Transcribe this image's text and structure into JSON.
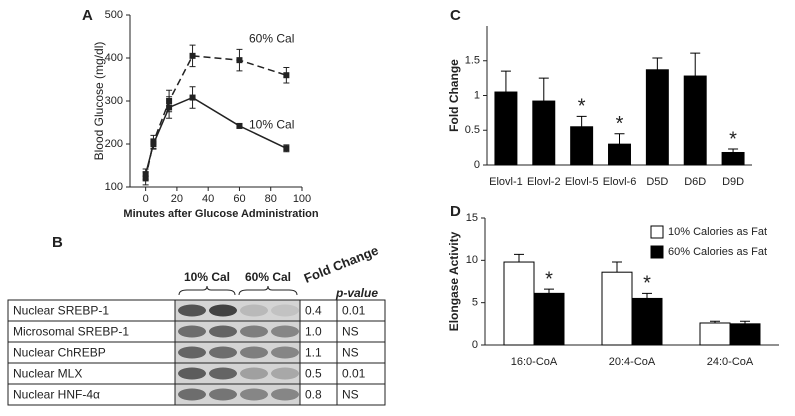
{
  "chart_data": [
    {
      "type": "line",
      "panel": "A",
      "x_label": "Minutes after Glucose Administration",
      "y_label": "Blood Glucose (mg/dl)",
      "x": [
        0,
        5,
        15,
        30,
        60,
        90
      ],
      "series": [
        {
          "name": "60% Cal",
          "color": "#222222",
          "dash": "dashed",
          "values": [
            120,
            205,
            300,
            405,
            395,
            360
          ],
          "errors": [
            15,
            15,
            25,
            25,
            25,
            18
          ]
        },
        {
          "name": "10% Cal",
          "color": "#222222",
          "dash": "solid",
          "values": [
            130,
            200,
            285,
            308,
            242,
            190
          ],
          "errors": [
            12,
            12,
            25,
            25,
            5,
            8
          ]
        }
      ],
      "xlim": [
        -10,
        100
      ],
      "xticks": [
        0,
        20,
        40,
        60,
        80,
        100
      ],
      "ylim": [
        100,
        500
      ],
      "yticks": [
        100,
        200,
        300,
        400,
        500
      ]
    },
    {
      "type": "bar",
      "panel": "C",
      "y_label": "Fold Change",
      "categories": [
        "Elovl-1",
        "Elovl-2",
        "Elovl-5",
        "Elovl-6",
        "D5D",
        "D6D",
        "D9D"
      ],
      "values": [
        1.05,
        0.92,
        0.55,
        0.3,
        1.37,
        1.28,
        0.18
      ],
      "errors": [
        0.3,
        0.33,
        0.15,
        0.15,
        0.17,
        0.33,
        0.05
      ],
      "significant": [
        false,
        false,
        true,
        true,
        false,
        false,
        true
      ],
      "significance_label": "*",
      "color": "#000000",
      "ylim": [
        0,
        2
      ],
      "yticks": [
        0,
        0.5,
        1,
        1.5
      ]
    },
    {
      "type": "bar",
      "panel": "D",
      "y_label": "Elongase Activity",
      "categories": [
        "16:0-CoA",
        "20:4-CoA",
        "24:0-CoA"
      ],
      "series": [
        {
          "name": "10% Calories as Fat",
          "color": "#ffffff",
          "values": [
            9.8,
            8.6,
            2.6
          ],
          "errors": [
            0.9,
            1.2,
            0.2
          ],
          "significant": [
            false,
            false,
            false
          ]
        },
        {
          "name": "60% Calories as Fat",
          "color": "#000000",
          "values": [
            6.1,
            5.5,
            2.5
          ],
          "errors": [
            0.5,
            0.6,
            0.3
          ],
          "significant": [
            true,
            true,
            false
          ]
        }
      ],
      "significance_label": "*",
      "legend": "upper right",
      "ylim": [
        0,
        15
      ],
      "yticks": [
        0,
        5,
        10,
        15
      ]
    }
  ],
  "table": {
    "panel": "B",
    "columns": [
      "10% Cal",
      "60% Cal",
      "Fold Change",
      "p-value"
    ],
    "rows": [
      [
        "Nuclear SREBP-1",
        "0.4",
        "0.01"
      ],
      [
        "Microsomal SREBP-1",
        "1.0",
        "NS"
      ],
      [
        "Nuclear ChREBP",
        "1.1",
        "NS"
      ],
      [
        "Nuclear MLX",
        "0.5",
        "0.01"
      ],
      [
        "Nuclear HNF-4α",
        "0.8",
        "NS"
      ]
    ]
  }
}
